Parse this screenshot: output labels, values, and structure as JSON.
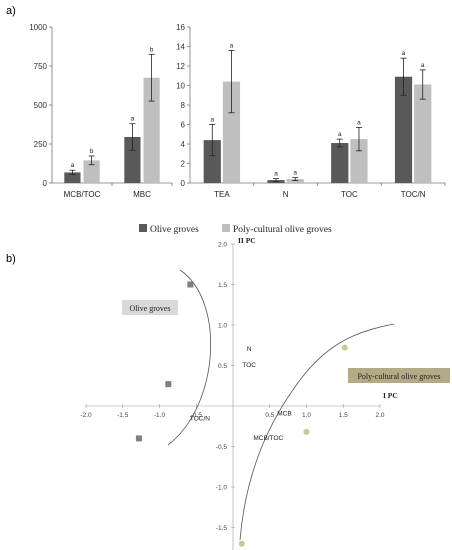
{
  "panel_a_label": "a)",
  "panel_b_label": "b)",
  "legend": {
    "olive_label": "Olive groves",
    "poly_label": "Poly-cultural olive groves"
  },
  "colors": {
    "olive": "#595959",
    "poly": "#bfbfbf",
    "olive_point": "#7f7f7f",
    "poly_point": "#c6c89a",
    "olive_box": "#d9d9d9",
    "poly_box": "#b5aa85"
  },
  "chart_data": [
    {
      "type": "bar",
      "categories": [
        "MCB/TOC",
        "MBC"
      ],
      "series": [
        {
          "name": "Olive groves",
          "values": [
            68,
            295
          ],
          "errors": [
            14,
            85
          ],
          "letters": [
            "a",
            "a"
          ]
        },
        {
          "name": "Poly-cultural olive groves",
          "values": [
            145,
            675
          ],
          "errors": [
            28,
            150
          ],
          "letters": [
            "b",
            "b"
          ]
        }
      ],
      "ylim": [
        0,
        1000
      ],
      "yticks": [
        "0",
        "250",
        "500",
        "750",
        "1000"
      ],
      "title": "",
      "xlabel": "",
      "ylabel": "",
      "grid": false,
      "legend": "bottom"
    },
    {
      "type": "bar",
      "categories": [
        "TEA",
        "N",
        "TOC",
        "TOC/N"
      ],
      "series": [
        {
          "name": "Olive groves",
          "values": [
            4.4,
            0.3,
            4.1,
            10.9
          ],
          "errors": [
            1.6,
            0.15,
            0.4,
            1.9
          ],
          "letters": [
            "a",
            "a",
            "a",
            "a"
          ]
        },
        {
          "name": "Poly-cultural olive groves",
          "values": [
            10.4,
            0.4,
            4.5,
            10.1
          ],
          "errors": [
            3.2,
            0.15,
            1.2,
            1.5
          ],
          "letters": [
            "a",
            "a",
            "a",
            "a"
          ]
        }
      ],
      "ylim": [
        0,
        16
      ],
      "yticks": [
        "0",
        "2",
        "4",
        "6",
        "8",
        "10",
        "12",
        "14",
        "16"
      ],
      "title": "",
      "xlabel": "",
      "ylabel": "",
      "grid": false,
      "legend": "bottom"
    },
    {
      "type": "scatter",
      "xlabel": "I PC",
      "ylabel": "II PC",
      "xlim": [
        -2.0,
        2.0
      ],
      "ylim": [
        -2.0,
        2.0
      ],
      "xticks": [
        "-2.0",
        "-1.5",
        "-1.0",
        "-0.5",
        "0.5",
        "1.0",
        "1.5",
        "2.0"
      ],
      "yticks": [
        "2.0",
        "1.5",
        "1.0",
        "0.5",
        "-0.5",
        "-1.0",
        "-1.5",
        "-2.0"
      ],
      "groups": [
        {
          "name": "Olive groves",
          "marker": "square",
          "points": [
            {
              "x": -0.58,
              "y": 1.5
            },
            {
              "x": -0.88,
              "y": 0.27
            },
            {
              "x": -1.28,
              "y": -0.4
            }
          ]
        },
        {
          "name": "Poly-cultural olive groves",
          "marker": "circle",
          "points": [
            {
              "x": 1.52,
              "y": 0.72
            },
            {
              "x": 1.0,
              "y": -0.32
            },
            {
              "x": 0.12,
              "y": -1.7
            }
          ]
        }
      ],
      "variables": [
        {
          "label": "N",
          "x": 0.22,
          "y": 0.68
        },
        {
          "label": "TOC",
          "x": 0.22,
          "y": 0.48
        },
        {
          "label": "TOC/N",
          "x": -0.45,
          "y": -0.18
        },
        {
          "label": "MCB",
          "x": 0.7,
          "y": -0.12
        },
        {
          "label": "MCB/TOC",
          "x": 0.48,
          "y": -0.42
        }
      ],
      "group_labels": [
        "Olive groves",
        "Poly-cultural olive groves"
      ],
      "grid": false
    }
  ]
}
